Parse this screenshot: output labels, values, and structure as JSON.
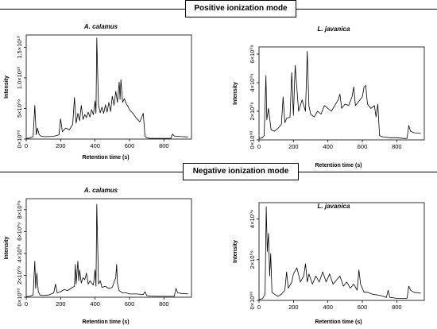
{
  "sections": {
    "positive_label": "Positive ionization mode",
    "negative_label": "Negative ionization mode"
  },
  "chart_data": [
    {
      "type": "line",
      "title": "A. calamus",
      "xlabel": "Retention time (s)",
      "ylabel": "Intensity",
      "xlim": [
        0,
        960
      ],
      "ylim": [
        0,
        17000000000
      ],
      "xticks": [
        0,
        200,
        400,
        600,
        800
      ],
      "yticks": [
        0,
        5000000000,
        10000000000,
        15000000000
      ],
      "ytick_labels": [
        "0×10⁰⁰",
        "5×10⁰⁹",
        "1.0×10¹⁰",
        "1.5×10¹⁰"
      ],
      "x": [
        0,
        20,
        40,
        50,
        58,
        65,
        75,
        85,
        100,
        130,
        160,
        190,
        200,
        210,
        230,
        250,
        270,
        280,
        290,
        300,
        310,
        320,
        330,
        340,
        350,
        360,
        370,
        380,
        390,
        400,
        405,
        410,
        420,
        430,
        440,
        450,
        460,
        470,
        480,
        490,
        500,
        510,
        520,
        530,
        540,
        545,
        550,
        560,
        570,
        580,
        590,
        600,
        620,
        640,
        660,
        680,
        690,
        700,
        720,
        760,
        800,
        840,
        850,
        860,
        900,
        940
      ],
      "y": [
        100000000,
        150000000,
        400000000,
        5500000000,
        700000000,
        1800000000,
        700000000,
        500000000,
        400000000,
        400000000,
        450000000,
        700000000,
        3300000000,
        1200000000,
        1800000000,
        1500000000,
        2400000000,
        6800000000,
        2600000000,
        4200000000,
        3000000000,
        5500000000,
        3200000000,
        4000000000,
        3500000000,
        4400000000,
        3600000000,
        4800000000,
        4000000000,
        6200000000,
        4200000000,
        16500000000,
        5500000000,
        4300000000,
        5200000000,
        4200000000,
        5600000000,
        4400000000,
        6000000000,
        4500000000,
        7000000000,
        5500000000,
        7800000000,
        6000000000,
        9300000000,
        6500000000,
        9700000000,
        6000000000,
        6600000000,
        5800000000,
        5400000000,
        4800000000,
        4200000000,
        3400000000,
        2800000000,
        4200000000,
        500000000,
        200000000,
        100000000,
        100000000,
        100000000,
        100000000,
        800000000,
        500000000,
        400000000,
        350000000
      ]
    },
    {
      "type": "line",
      "title": "L. javanica",
      "xlabel": "Retention time (s)",
      "ylabel": "Intensity",
      "xlim": [
        0,
        960
      ],
      "ylim": [
        0,
        6500000000
      ],
      "xticks": [
        0,
        200,
        400,
        600,
        800
      ],
      "yticks": [
        0,
        2000000000,
        4000000000,
        6000000000
      ],
      "ytick_labels": [
        "0×10⁰⁰",
        "2×10⁰⁹",
        "4×10⁰⁹",
        "6×10⁰⁹"
      ],
      "x": [
        0,
        20,
        30,
        40,
        45,
        55,
        70,
        90,
        110,
        130,
        140,
        150,
        160,
        180,
        190,
        200,
        210,
        230,
        250,
        270,
        280,
        290,
        300,
        320,
        340,
        360,
        380,
        400,
        420,
        440,
        460,
        470,
        480,
        500,
        520,
        540,
        550,
        560,
        580,
        600,
        610,
        620,
        630,
        650,
        670,
        680,
        690,
        700,
        720,
        760,
        800,
        840,
        860,
        870,
        880,
        900,
        940
      ],
      "y": [
        100000000,
        150000000,
        300000000,
        4500000000,
        1400000000,
        2200000000,
        700000000,
        600000000,
        800000000,
        1100000000,
        3000000000,
        1200000000,
        1500000000,
        1600000000,
        4700000000,
        1700000000,
        5200000000,
        2000000000,
        2800000000,
        2000000000,
        6200000000,
        2400000000,
        1800000000,
        1600000000,
        2000000000,
        1800000000,
        2400000000,
        2200000000,
        2000000000,
        2400000000,
        2800000000,
        3200000000,
        2200000000,
        2500000000,
        2400000000,
        3000000000,
        3700000000,
        2400000000,
        2700000000,
        3000000000,
        3700000000,
        3800000000,
        2500000000,
        2200000000,
        2400000000,
        1600000000,
        2500000000,
        300000000,
        200000000,
        150000000,
        150000000,
        100000000,
        100000000,
        1000000000,
        600000000,
        500000000,
        450000000
      ]
    },
    {
      "type": "line",
      "title": "A. calamus",
      "xlabel": "Retention time (s)",
      "ylabel": "Intensity",
      "xlim": [
        0,
        960
      ],
      "ylim": [
        0,
        9000000000
      ],
      "xticks": [
        0,
        200,
        400,
        600,
        800
      ],
      "yticks": [
        0,
        2000000000,
        4000000000,
        6000000000,
        8000000000
      ],
      "ytick_labels": [
        "0×10⁰⁰",
        "2×10⁰⁹",
        "4×10⁰⁹",
        "6×10⁰⁹",
        "8×10⁰⁹"
      ],
      "x": [
        0,
        20,
        40,
        50,
        55,
        62,
        70,
        80,
        100,
        130,
        160,
        170,
        180,
        200,
        220,
        240,
        260,
        280,
        285,
        290,
        300,
        305,
        310,
        320,
        330,
        340,
        350,
        360,
        370,
        380,
        390,
        400,
        405,
        410,
        420,
        430,
        440,
        460,
        480,
        500,
        520,
        525,
        530,
        540,
        560,
        580,
        600,
        640,
        680,
        690,
        700,
        720,
        760,
        800,
        840,
        860,
        870,
        880,
        900,
        940
      ],
      "y": [
        50000000,
        80000000,
        200000000,
        3300000000,
        800000000,
        2200000000,
        500000000,
        200000000,
        150000000,
        200000000,
        400000000,
        1200000000,
        400000000,
        500000000,
        700000000,
        600000000,
        800000000,
        1000000000,
        3000000000,
        1200000000,
        3300000000,
        1500000000,
        2500000000,
        1300000000,
        1800000000,
        1600000000,
        2200000000,
        1200000000,
        1500000000,
        1300000000,
        1100000000,
        2500000000,
        1000000000,
        8500000000,
        1200000000,
        1500000000,
        900000000,
        1000000000,
        800000000,
        900000000,
        1800000000,
        3000000000,
        1300000000,
        600000000,
        400000000,
        400000000,
        300000000,
        300000000,
        250000000,
        500000000,
        150000000,
        100000000,
        80000000,
        80000000,
        80000000,
        80000000,
        800000000,
        400000000,
        350000000,
        300000000
      ]
    },
    {
      "type": "line",
      "title": "L. javanica",
      "xlabel": "Retention time (s)",
      "ylabel": "Intensity",
      "xlim": [
        0,
        960
      ],
      "ylim": [
        0,
        4800000000
      ],
      "xticks": [
        0,
        200,
        400,
        600,
        800
      ],
      "yticks": [
        0,
        2000000000,
        4000000000
      ],
      "ytick_labels": [
        "0×10⁰⁰",
        "2×10⁰⁹",
        "4×10⁰⁹"
      ],
      "x": [
        0,
        20,
        35,
        42,
        48,
        55,
        62,
        68,
        75,
        90,
        110,
        130,
        150,
        160,
        170,
        190,
        200,
        220,
        240,
        260,
        270,
        280,
        290,
        310,
        330,
        350,
        370,
        390,
        410,
        430,
        450,
        470,
        490,
        510,
        530,
        550,
        570,
        580,
        590,
        610,
        630,
        660,
        700,
        720,
        740,
        750,
        760,
        800,
        840,
        860,
        870,
        880,
        900,
        940
      ],
      "y": [
        50000000,
        80000000,
        300000000,
        4600000000,
        2400000000,
        3300000000,
        1200000000,
        2300000000,
        400000000,
        300000000,
        200000000,
        300000000,
        500000000,
        1400000000,
        600000000,
        900000000,
        1300000000,
        1600000000,
        900000000,
        1200000000,
        1800000000,
        900000000,
        1300000000,
        800000000,
        1200000000,
        900000000,
        1400000000,
        900000000,
        1300000000,
        800000000,
        1000000000,
        1200000000,
        700000000,
        900000000,
        600000000,
        800000000,
        500000000,
        1500000000,
        800000000,
        400000000,
        400000000,
        300000000,
        250000000,
        200000000,
        150000000,
        500000000,
        150000000,
        100000000,
        100000000,
        100000000,
        700000000,
        500000000,
        400000000,
        350000000
      ]
    }
  ]
}
